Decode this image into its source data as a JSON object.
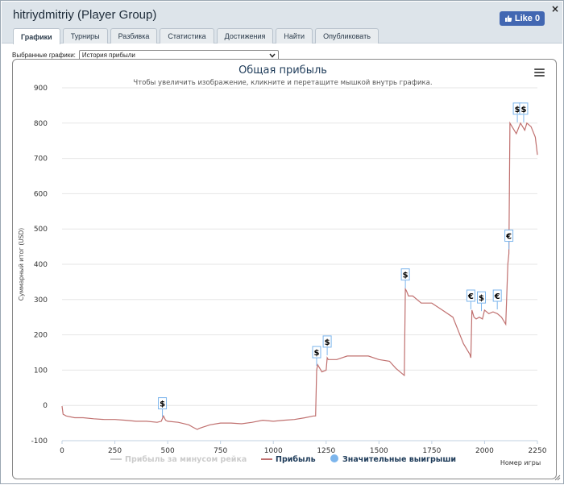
{
  "window": {
    "title": "hitriydmitriy (Player Group)",
    "close_glyph": "×",
    "like_label": "Like 0"
  },
  "tabs": [
    {
      "label": "Графики",
      "active": true
    },
    {
      "label": "Турниры"
    },
    {
      "label": "Разбивка"
    },
    {
      "label": "Статистика"
    },
    {
      "label": "Достижения"
    },
    {
      "label": "Найти"
    },
    {
      "label": "Опубликовать"
    }
  ],
  "selector": {
    "label": "Выбранные графики:",
    "value": "История прибыли"
  },
  "chart_data": {
    "type": "line",
    "title": "Общая прибыль",
    "subtitle": "Чтобы увеличить изображение, кликните и перетащите мышкой внутрь графика.",
    "ylabel": "Суммарный итог (USD)",
    "xlabel": "Номер игры",
    "xlim": [
      0,
      2250
    ],
    "ylim": [
      -100,
      900
    ],
    "x_ticks": [
      0,
      250,
      500,
      750,
      1000,
      1250,
      1500,
      1750,
      2000,
      2250
    ],
    "y_ticks": [
      -100,
      0,
      100,
      200,
      300,
      400,
      500,
      600,
      700,
      800,
      900
    ],
    "grid": true,
    "legend_position": "bottom",
    "series": [
      {
        "name": "Прибыль за минусом рейка",
        "color": "#cccccc",
        "hidden": true
      },
      {
        "name": "Прибыль",
        "color": "#c0706f",
        "x": [
          0,
          5,
          20,
          60,
          100,
          150,
          200,
          250,
          300,
          350,
          400,
          450,
          470,
          480,
          490,
          500,
          550,
          600,
          620,
          640,
          650,
          700,
          750,
          800,
          850,
          900,
          950,
          1000,
          1050,
          1100,
          1150,
          1190,
          1200,
          1205,
          1210,
          1230,
          1250,
          1255,
          1260,
          1300,
          1350,
          1400,
          1450,
          1500,
          1550,
          1580,
          1610,
          1620,
          1625,
          1630,
          1640,
          1660,
          1700,
          1750,
          1800,
          1850,
          1900,
          1930,
          1935,
          1940,
          1950,
          1960,
          1975,
          1990,
          2000,
          2020,
          2040,
          2060,
          2080,
          2100,
          2110,
          2115,
          2120,
          2130,
          2150,
          2170,
          2190,
          2200,
          2220,
          2240,
          2250
        ],
        "y": [
          -2,
          -25,
          -30,
          -35,
          -35,
          -38,
          -40,
          -40,
          -42,
          -45,
          -45,
          -48,
          -45,
          -30,
          -42,
          -45,
          -48,
          -55,
          -62,
          -68,
          -65,
          -55,
          -50,
          -50,
          -52,
          -48,
          -42,
          -45,
          -42,
          -40,
          -35,
          -30,
          -30,
          100,
          115,
          95,
          100,
          135,
          130,
          130,
          140,
          140,
          140,
          130,
          125,
          105,
          90,
          85,
          330,
          325,
          310,
          310,
          290,
          290,
          270,
          250,
          175,
          145,
          135,
          270,
          250,
          245,
          250,
          245,
          270,
          260,
          265,
          260,
          250,
          230,
          400,
          430,
          800,
          790,
          770,
          800,
          780,
          800,
          790,
          760,
          710
        ]
      },
      {
        "name": "Значительные выигрыши",
        "color": "#7cb5ec",
        "marker": true
      }
    ],
    "flags": [
      {
        "x": 475,
        "y": -10,
        "symbol": "$"
      },
      {
        "x": 1205,
        "y": 135,
        "symbol": "$"
      },
      {
        "x": 1255,
        "y": 165,
        "symbol": "$"
      },
      {
        "x": 1625,
        "y": 355,
        "symbol": "$"
      },
      {
        "x": 1935,
        "y": 295,
        "symbol": "€"
      },
      {
        "x": 1985,
        "y": 290,
        "symbol": "$"
      },
      {
        "x": 2060,
        "y": 295,
        "symbol": "€"
      },
      {
        "x": 2115,
        "y": 465,
        "symbol": "€"
      },
      {
        "x": 2155,
        "y": 825,
        "symbol": "$"
      },
      {
        "x": 2185,
        "y": 825,
        "symbol": "$"
      }
    ]
  }
}
